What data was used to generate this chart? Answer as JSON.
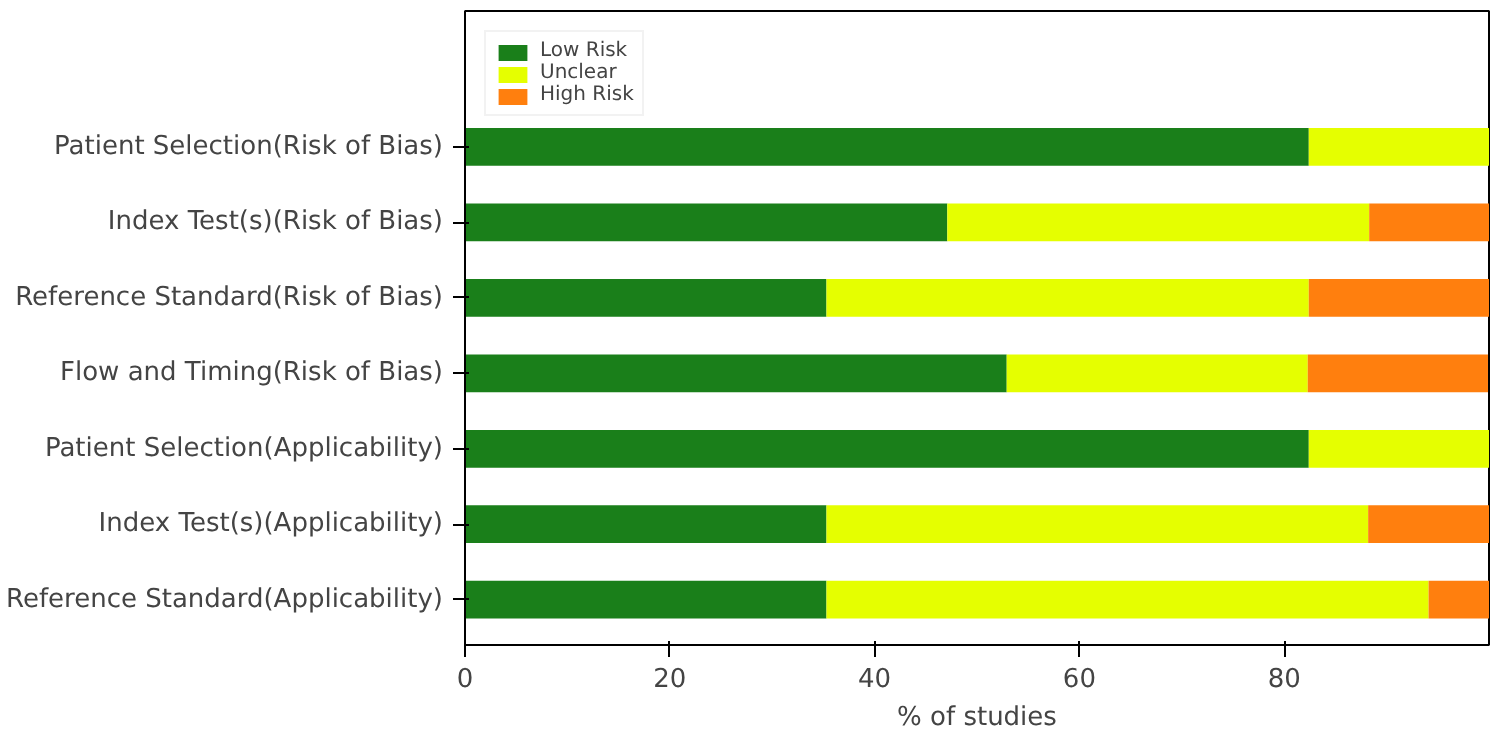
{
  "chart_data": {
    "type": "bar",
    "orientation": "horizontal",
    "stacked": true,
    "xlabel": "% of studies",
    "categories": [
      "Patient Selection(Risk of Bias)",
      "Index Test(s)(Risk of Bias)",
      "Reference Standard(Risk of Bias)",
      "Flow and Timing(Risk of Bias)",
      "Patient Selection(Applicability)",
      "Index Test(s)(Applicability)",
      "Reference Standard(Applicability)"
    ],
    "series": [
      {
        "name": "Low Risk",
        "color": "#1a7f1a",
        "values": [
          82.4,
          47.1,
          35.3,
          52.9,
          82.4,
          35.3,
          35.3
        ]
      },
      {
        "name": "Unclear",
        "color": "#e5ff00",
        "values": [
          17.6,
          41.2,
          47.1,
          29.4,
          17.6,
          52.9,
          58.8
        ]
      },
      {
        "name": "High Risk",
        "color": "#ff7f0e",
        "values": [
          0,
          11.8,
          17.6,
          17.6,
          0,
          11.8,
          5.9
        ]
      }
    ],
    "xlim": [
      0,
      100
    ],
    "xticks": [
      0,
      20,
      40,
      60,
      80
    ],
    "grid": false,
    "legend": "top left"
  }
}
